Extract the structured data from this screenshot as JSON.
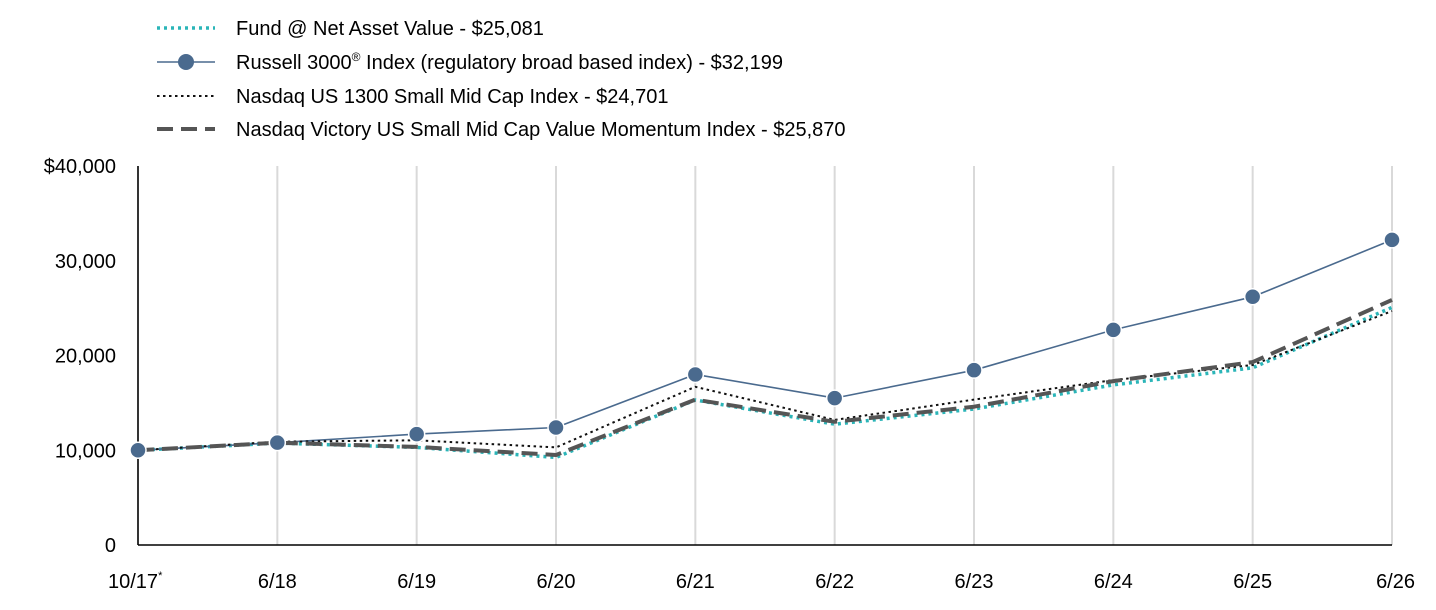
{
  "chart_data": {
    "type": "line",
    "categories": [
      "10/17",
      "6/18",
      "6/19",
      "6/20",
      "6/21",
      "6/22",
      "6/23",
      "6/24",
      "6/25",
      "6/26"
    ],
    "first_category_marker": "*",
    "ylim": [
      0,
      40000
    ],
    "y_ticks": [
      {
        "value": 0,
        "label": "0"
      },
      {
        "value": 10000,
        "label": "10,000"
      },
      {
        "value": 20000,
        "label": "20,000"
      },
      {
        "value": 30000,
        "label": "30,000"
      },
      {
        "value": 40000,
        "label": "$40,000"
      }
    ],
    "grid": "vertical",
    "legend_position": "top-left",
    "series": [
      {
        "name": "Fund @ Net Asset Value - $25,081",
        "color": "#2bb5b8",
        "style": "dotted",
        "values": [
          10000,
          10750,
          10300,
          9250,
          15300,
          12750,
          14350,
          16900,
          18700,
          25081
        ]
      },
      {
        "name": "Russell 3000",
        "name_superscript": "®",
        "name_suffix": " Index (regulatory broad based index) - $32,199",
        "color": "#4a6a8e",
        "style": "solid-markers",
        "values": [
          10000,
          10800,
          11700,
          12400,
          18000,
          15500,
          18450,
          22700,
          26200,
          32199
        ]
      },
      {
        "name": "Nasdaq US 1300 Small Mid Cap Index - $24,701",
        "color": "#111111",
        "style": "fine-dotted",
        "values": [
          10000,
          10900,
          11050,
          10300,
          16700,
          13200,
          15350,
          17400,
          19000,
          24701
        ]
      },
      {
        "name": "Nasdaq Victory US Small Mid Cap Value Momentum Index - $25,870",
        "color": "#555555",
        "style": "dashed",
        "values": [
          10000,
          10800,
          10350,
          9500,
          15350,
          13000,
          14600,
          17300,
          19300,
          25870
        ]
      }
    ]
  }
}
